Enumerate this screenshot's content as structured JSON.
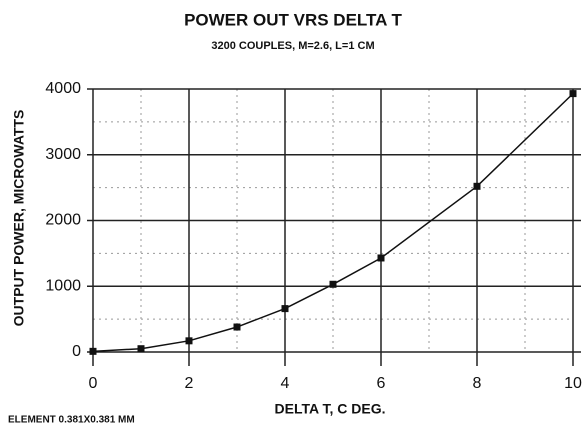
{
  "chart_data": {
    "type": "line",
    "title": "POWER  OUT VRS DELTA T",
    "subtitle": "3200 COUPLES, M=2.6, L=1 CM",
    "x_label": "DELTA T, C DEG.",
    "y_label": "OUTPUT POWER, MICROWATTS",
    "annotation": "ELEMENT 0.381X0.381 MM",
    "x": [
      0,
      1,
      2,
      3,
      4,
      5,
      6,
      8,
      10
    ],
    "values": [
      10,
      50,
      170,
      380,
      660,
      1030,
      1430,
      2520,
      3930
    ],
    "color": "#111111",
    "xlim": [
      0,
      10
    ],
    "ylim": [
      0,
      4000
    ],
    "xticks": [
      0,
      2,
      4,
      6,
      8,
      10
    ],
    "yticks": [
      0,
      1000,
      2000,
      3000,
      4000
    ],
    "xminor": [
      1,
      3,
      5,
      7,
      9
    ],
    "yminor": [
      500,
      1500,
      2500,
      3500
    ],
    "grid": true
  }
}
